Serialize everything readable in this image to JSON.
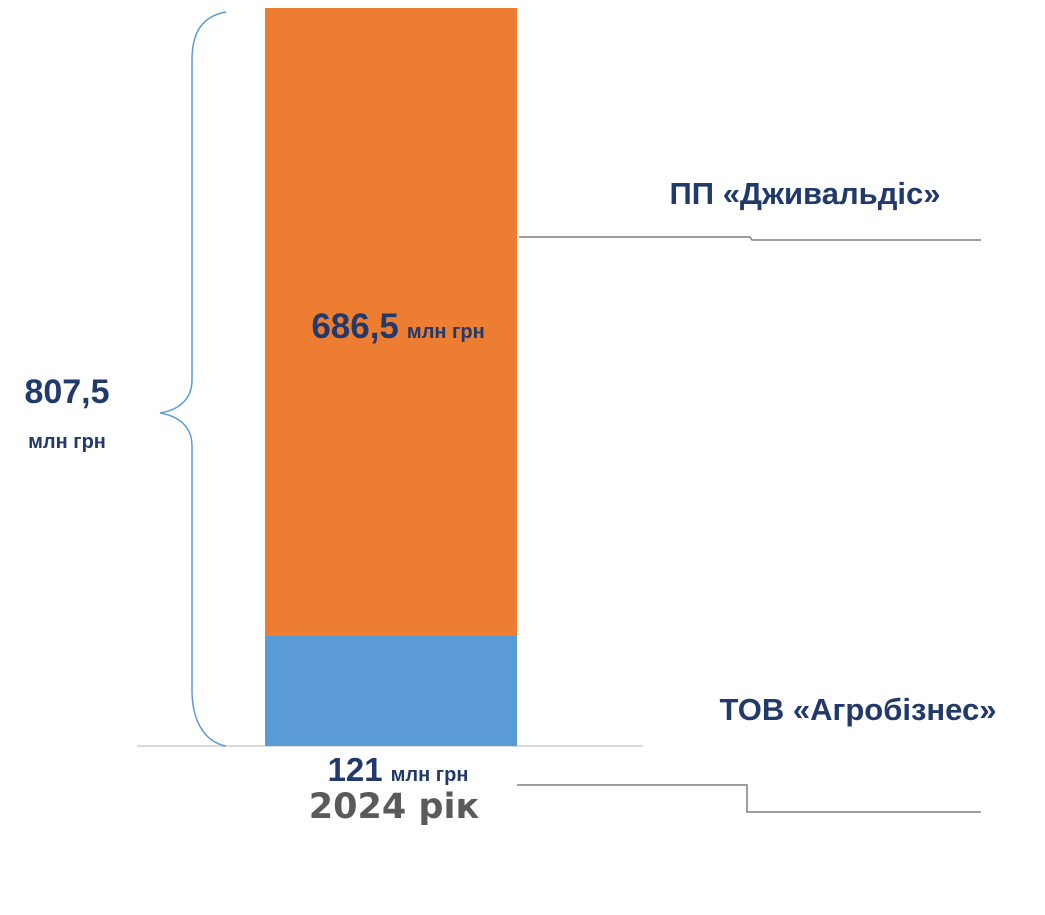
{
  "chart_data": {
    "type": "bar",
    "stacked": true,
    "categories": [
      "2024 рік"
    ],
    "series": [
      {
        "name": "ТОВ «Агробізнес»",
        "values": [
          121
        ],
        "value_label": "121",
        "unit": "млн грн",
        "color": "#5b9bd5"
      },
      {
        "name": "ПП «Дживальдіс»",
        "values": [
          686.5
        ],
        "value_label": "686,5",
        "unit": "млн грн",
        "color": "#ed7d31"
      }
    ],
    "total": {
      "value": 807.5,
      "label": "807,5",
      "unit": "млн грн"
    },
    "xlabel": "",
    "ylabel": "",
    "grid": false,
    "legend": "leader-lines-right",
    "colors": {
      "text": "#213a6b",
      "category": "#5a5a5a",
      "brace": "#5b9bd5",
      "leader": "#7f7f7f",
      "baseline": "#d9d9d9"
    }
  }
}
